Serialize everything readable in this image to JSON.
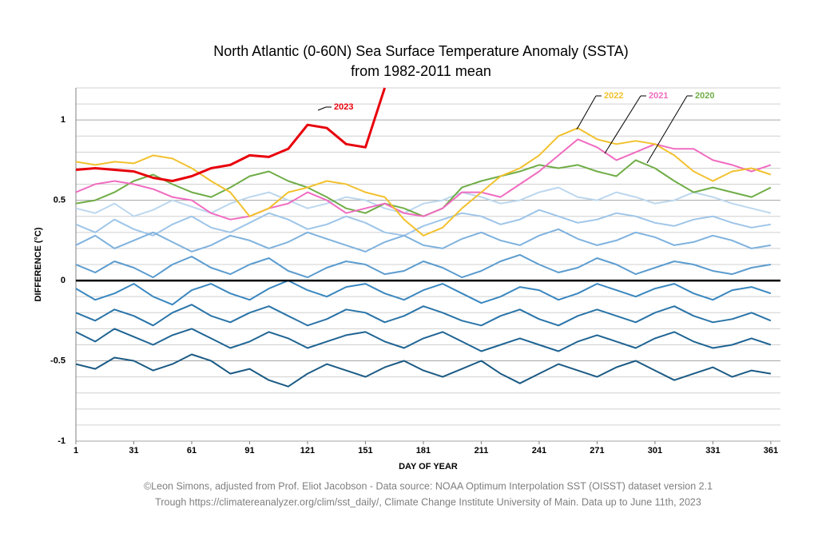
{
  "chart_data": {
    "type": "line",
    "title": "North Atlantic (0-60N) Sea Surface Temperature Anomaly (SSTA)",
    "subtitle": "from 1982-2011 mean",
    "y_label": "DIFFERENCE (°C)",
    "x_label": "DAY OF YEAR",
    "notes": [
      "©Leon Simons, adjusted from Prof. Eliot Jacobson - Data source: NOAA Optimum Interpolation SST (OISST) dataset version 2.1",
      "Trough https://climatereanalyzer.org/clim/sst_daily/, Climate Change Institute University of Main. Data up to June 11th, 2023"
    ],
    "xlim": [
      1,
      366
    ],
    "ylim": [
      -1,
      1.2
    ],
    "xticks": [
      1,
      31,
      61,
      91,
      121,
      151,
      181,
      211,
      241,
      271,
      301,
      331,
      361
    ],
    "yticks": [
      -1,
      -0.5,
      0,
      0.5,
      1
    ],
    "yminorticks": [
      -0.9,
      -0.8,
      -0.7,
      -0.6,
      -0.4,
      -0.3,
      -0.2,
      -0.1,
      0.1,
      0.2,
      0.3,
      0.4,
      0.6,
      0.7,
      0.8,
      0.9,
      1.1,
      1.2
    ],
    "grid": true,
    "x": [
      1,
      11,
      21,
      31,
      41,
      51,
      61,
      71,
      81,
      91,
      101,
      111,
      121,
      131,
      141,
      151,
      161,
      171,
      181,
      191,
      201,
      211,
      221,
      231,
      241,
      251,
      261,
      271,
      281,
      291,
      301,
      311,
      321,
      331,
      341,
      351,
      361
    ],
    "series": [
      {
        "color": "#bcd7ee",
        "values": [
          0.45,
          0.42,
          0.48,
          0.4,
          0.44,
          0.5,
          0.46,
          0.42,
          0.48,
          0.52,
          0.55,
          0.5,
          0.45,
          0.48,
          0.52,
          0.5,
          0.45,
          0.42,
          0.48,
          0.5,
          0.55,
          0.52,
          0.48,
          0.5,
          0.55,
          0.58,
          0.52,
          0.5,
          0.55,
          0.52,
          0.48,
          0.5,
          0.55,
          0.52,
          0.48,
          0.45,
          0.42
        ]
      },
      {
        "color": "#9ec5e8",
        "values": [
          0.35,
          0.3,
          0.38,
          0.32,
          0.28,
          0.35,
          0.4,
          0.33,
          0.3,
          0.36,
          0.42,
          0.38,
          0.32,
          0.35,
          0.4,
          0.36,
          0.3,
          0.28,
          0.34,
          0.38,
          0.42,
          0.4,
          0.35,
          0.38,
          0.44,
          0.4,
          0.36,
          0.38,
          0.42,
          0.4,
          0.36,
          0.34,
          0.38,
          0.4,
          0.36,
          0.33,
          0.35
        ]
      },
      {
        "color": "#7fb2de",
        "values": [
          0.22,
          0.28,
          0.2,
          0.25,
          0.3,
          0.24,
          0.18,
          0.22,
          0.28,
          0.25,
          0.2,
          0.24,
          0.3,
          0.26,
          0.22,
          0.18,
          0.24,
          0.28,
          0.22,
          0.2,
          0.26,
          0.3,
          0.25,
          0.22,
          0.28,
          0.32,
          0.26,
          0.22,
          0.25,
          0.3,
          0.27,
          0.22,
          0.24,
          0.28,
          0.25,
          0.2,
          0.22
        ]
      },
      {
        "color": "#5c9ccf",
        "values": [
          0.1,
          0.05,
          0.12,
          0.08,
          0.02,
          0.1,
          0.15,
          0.08,
          0.04,
          0.1,
          0.14,
          0.06,
          0.02,
          0.08,
          0.12,
          0.1,
          0.04,
          0.06,
          0.12,
          0.08,
          0.02,
          0.06,
          0.12,
          0.16,
          0.1,
          0.05,
          0.08,
          0.14,
          0.1,
          0.04,
          0.08,
          0.12,
          0.1,
          0.06,
          0.04,
          0.08,
          0.1
        ]
      },
      {
        "color": "#3a87bf",
        "values": [
          -0.05,
          -0.12,
          -0.08,
          -0.02,
          -0.1,
          -0.15,
          -0.06,
          -0.02,
          -0.08,
          -0.12,
          -0.05,
          0.0,
          -0.06,
          -0.1,
          -0.04,
          -0.02,
          -0.08,
          -0.12,
          -0.06,
          -0.02,
          -0.08,
          -0.14,
          -0.1,
          -0.04,
          -0.06,
          -0.12,
          -0.08,
          -0.02,
          -0.06,
          -0.1,
          -0.05,
          -0.02,
          -0.08,
          -0.12,
          -0.06,
          -0.04,
          -0.08
        ]
      },
      {
        "color": "#2a74a8",
        "values": [
          -0.2,
          -0.25,
          -0.18,
          -0.22,
          -0.28,
          -0.2,
          -0.15,
          -0.22,
          -0.26,
          -0.2,
          -0.16,
          -0.22,
          -0.28,
          -0.24,
          -0.18,
          -0.2,
          -0.26,
          -0.22,
          -0.16,
          -0.2,
          -0.25,
          -0.28,
          -0.22,
          -0.18,
          -0.24,
          -0.28,
          -0.22,
          -0.18,
          -0.22,
          -0.26,
          -0.2,
          -0.16,
          -0.22,
          -0.26,
          -0.24,
          -0.2,
          -0.25
        ]
      },
      {
        "color": "#1f6493",
        "values": [
          -0.32,
          -0.38,
          -0.3,
          -0.35,
          -0.4,
          -0.34,
          -0.3,
          -0.36,
          -0.42,
          -0.38,
          -0.32,
          -0.36,
          -0.42,
          -0.38,
          -0.34,
          -0.32,
          -0.38,
          -0.42,
          -0.36,
          -0.32,
          -0.38,
          -0.44,
          -0.4,
          -0.36,
          -0.4,
          -0.44,
          -0.38,
          -0.34,
          -0.38,
          -0.42,
          -0.36,
          -0.32,
          -0.38,
          -0.42,
          -0.4,
          -0.36,
          -0.4
        ]
      },
      {
        "color": "#1b5a84",
        "values": [
          -0.52,
          -0.55,
          -0.48,
          -0.5,
          -0.56,
          -0.52,
          -0.46,
          -0.5,
          -0.58,
          -0.55,
          -0.62,
          -0.66,
          -0.58,
          -0.52,
          -0.56,
          -0.6,
          -0.54,
          -0.5,
          -0.56,
          -0.6,
          -0.55,
          -0.5,
          -0.58,
          -0.64,
          -0.58,
          -0.52,
          -0.56,
          -0.6,
          -0.54,
          -0.5,
          -0.56,
          -0.62,
          -0.58,
          -0.54,
          -0.6,
          -0.56,
          -0.58
        ]
      },
      {
        "name": "2020",
        "color": "#70ad47",
        "values": [
          0.48,
          0.5,
          0.55,
          0.62,
          0.66,
          0.6,
          0.55,
          0.52,
          0.58,
          0.65,
          0.68,
          0.62,
          0.58,
          0.52,
          0.45,
          0.42,
          0.48,
          0.45,
          0.4,
          0.45,
          0.58,
          0.62,
          0.65,
          0.68,
          0.72,
          0.7,
          0.72,
          0.68,
          0.65,
          0.75,
          0.7,
          0.62,
          0.55,
          0.58,
          0.55,
          0.52,
          0.58
        ]
      },
      {
        "name": "2021",
        "color": "#f06cc0",
        "values": [
          0.55,
          0.6,
          0.62,
          0.6,
          0.57,
          0.52,
          0.5,
          0.42,
          0.38,
          0.4,
          0.45,
          0.48,
          0.55,
          0.5,
          0.42,
          0.45,
          0.48,
          0.42,
          0.4,
          0.45,
          0.55,
          0.55,
          0.52,
          0.6,
          0.68,
          0.78,
          0.88,
          0.83,
          0.75,
          0.8,
          0.85,
          0.82,
          0.82,
          0.75,
          0.72,
          0.68,
          0.72
        ]
      },
      {
        "name": "2022",
        "color": "#f2c12e",
        "values": [
          0.74,
          0.72,
          0.74,
          0.73,
          0.78,
          0.76,
          0.7,
          0.62,
          0.55,
          0.4,
          0.45,
          0.55,
          0.58,
          0.62,
          0.6,
          0.55,
          0.52,
          0.38,
          0.28,
          0.33,
          0.45,
          0.55,
          0.65,
          0.7,
          0.78,
          0.9,
          0.95,
          0.88,
          0.85,
          0.87,
          0.85,
          0.78,
          0.68,
          0.62,
          0.68,
          0.7,
          0.66
        ]
      },
      {
        "name": "2023",
        "color": "#e8000b",
        "values": [
          0.69,
          0.7,
          0.69,
          0.68,
          0.64,
          0.62,
          0.65,
          0.7,
          0.72,
          0.78,
          0.77,
          0.82,
          0.97,
          0.95,
          0.85,
          0.83,
          1.2,
          null,
          null,
          null,
          null,
          null,
          null,
          null,
          null,
          null,
          null,
          null,
          null,
          null,
          null,
          null,
          null,
          null,
          null,
          null,
          null
        ]
      }
    ]
  }
}
